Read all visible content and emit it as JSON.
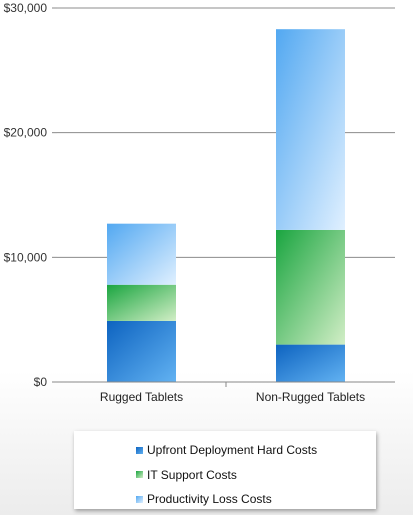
{
  "chart_data": {
    "type": "bar",
    "stacked": true,
    "categories": [
      "Rugged Tablets",
      "Non-Rugged Tablets"
    ],
    "series": [
      {
        "name": "Upfront Deployment Hard Costs",
        "values": [
          4900,
          3000
        ],
        "color": "#1a6fc4"
      },
      {
        "name": "IT Support Costs",
        "values": [
          2900,
          9200
        ],
        "color": "#2aa845"
      },
      {
        "name": "Productivity Loss Costs",
        "values": [
          4900,
          16100
        ],
        "color": "#5aa9ee"
      }
    ],
    "yticks": [
      "$0",
      "$10,000",
      "$20,000",
      "$30,000"
    ],
    "ylim": [
      0,
      30000
    ],
    "grid": true,
    "legend_position": "bottom"
  }
}
